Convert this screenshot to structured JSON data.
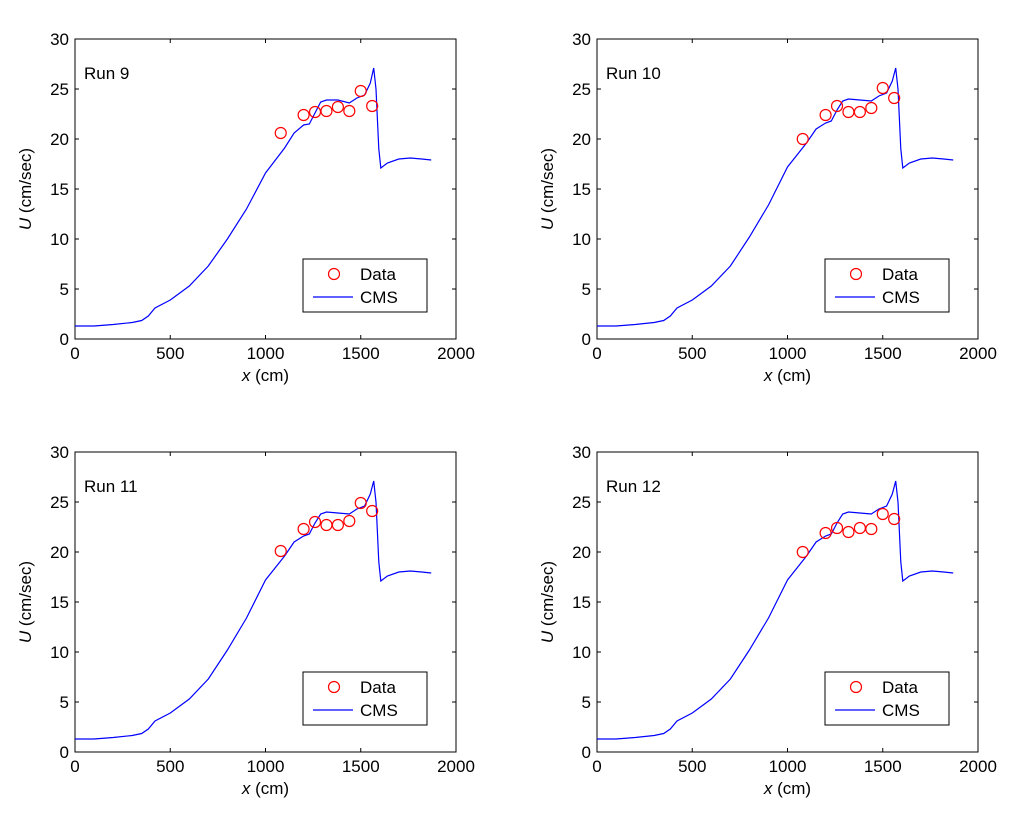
{
  "chart_data": [
    {
      "type": "line",
      "title": "Run 9",
      "xlabel_var": "x",
      "xlabel_unit": "(cm)",
      "ylabel_var": "U",
      "ylabel_unit": "(cm/sec)",
      "xlim": [
        0,
        2000
      ],
      "ylim": [
        0,
        30
      ],
      "xticks": [
        0,
        500,
        1000,
        1500,
        2000
      ],
      "yticks": [
        0,
        5,
        10,
        15,
        20,
        25,
        30
      ],
      "legend": "bottom-right",
      "series": [
        {
          "name": "Data",
          "kind": "scatter",
          "color": "#ff0000",
          "points": [
            [
              1080,
              20.6
            ],
            [
              1200,
              22.4
            ],
            [
              1260,
              22.7
            ],
            [
              1320,
              22.8
            ],
            [
              1380,
              23.2
            ],
            [
              1440,
              22.8
            ],
            [
              1500,
              24.8
            ],
            [
              1560,
              23.3
            ]
          ]
        },
        {
          "name": "CMS",
          "kind": "line",
          "color": "#0000ff",
          "points": [
            [
              0,
              1.3
            ],
            [
              100,
              1.3
            ],
            [
              200,
              1.45
            ],
            [
              300,
              1.65
            ],
            [
              350,
              1.85
            ],
            [
              385,
              2.3
            ],
            [
              420,
              3.1
            ],
            [
              500,
              3.9
            ],
            [
              600,
              5.3
            ],
            [
              700,
              7.3
            ],
            [
              800,
              10.0
            ],
            [
              900,
              13.0
            ],
            [
              1000,
              16.6
            ],
            [
              1100,
              19.1
            ],
            [
              1150,
              20.6
            ],
            [
              1200,
              21.4
            ],
            [
              1230,
              21.5
            ],
            [
              1260,
              22.6
            ],
            [
              1290,
              23.7
            ],
            [
              1320,
              23.9
            ],
            [
              1380,
              23.9
            ],
            [
              1440,
              23.6
            ],
            [
              1480,
              24.1
            ],
            [
              1520,
              24.4
            ],
            [
              1550,
              25.6
            ],
            [
              1568,
              27.1
            ],
            [
              1580,
              25.0
            ],
            [
              1595,
              19.0
            ],
            [
              1605,
              17.1
            ],
            [
              1640,
              17.6
            ],
            [
              1700,
              18.0
            ],
            [
              1760,
              18.1
            ],
            [
              1820,
              18.0
            ],
            [
              1870,
              17.9
            ]
          ]
        }
      ]
    },
    {
      "type": "line",
      "title": "Run 10",
      "xlabel_var": "x",
      "xlabel_unit": "(cm)",
      "ylabel_var": "U",
      "ylabel_unit": "(cm/sec)",
      "xlim": [
        0,
        2000
      ],
      "ylim": [
        0,
        30
      ],
      "xticks": [
        0,
        500,
        1000,
        1500,
        2000
      ],
      "yticks": [
        0,
        5,
        10,
        15,
        20,
        25,
        30
      ],
      "legend": "bottom-right",
      "series": [
        {
          "name": "Data",
          "kind": "scatter",
          "color": "#ff0000",
          "points": [
            [
              1080,
              20.0
            ],
            [
              1200,
              22.4
            ],
            [
              1260,
              23.3
            ],
            [
              1320,
              22.7
            ],
            [
              1380,
              22.7
            ],
            [
              1440,
              23.1
            ],
            [
              1500,
              25.1
            ],
            [
              1560,
              24.1
            ]
          ]
        },
        {
          "name": "CMS",
          "kind": "line",
          "color": "#0000ff",
          "points": [
            [
              0,
              1.3
            ],
            [
              100,
              1.3
            ],
            [
              200,
              1.45
            ],
            [
              300,
              1.65
            ],
            [
              350,
              1.85
            ],
            [
              385,
              2.3
            ],
            [
              420,
              3.1
            ],
            [
              500,
              3.9
            ],
            [
              600,
              5.3
            ],
            [
              700,
              7.3
            ],
            [
              800,
              10.2
            ],
            [
              900,
              13.4
            ],
            [
              1000,
              17.2
            ],
            [
              1100,
              19.6
            ],
            [
              1150,
              21.0
            ],
            [
              1200,
              21.6
            ],
            [
              1230,
              21.8
            ],
            [
              1260,
              22.9
            ],
            [
              1290,
              23.8
            ],
            [
              1320,
              24.0
            ],
            [
              1380,
              23.9
            ],
            [
              1440,
              23.8
            ],
            [
              1480,
              24.3
            ],
            [
              1520,
              24.6
            ],
            [
              1550,
              25.8
            ],
            [
              1568,
              27.1
            ],
            [
              1580,
              25.0
            ],
            [
              1595,
              19.0
            ],
            [
              1605,
              17.1
            ],
            [
              1640,
              17.6
            ],
            [
              1700,
              18.0
            ],
            [
              1760,
              18.1
            ],
            [
              1820,
              18.0
            ],
            [
              1870,
              17.9
            ]
          ]
        }
      ]
    },
    {
      "type": "line",
      "title": "Run 11",
      "xlabel_var": "x",
      "xlabel_unit": "(cm)",
      "ylabel_var": "U",
      "ylabel_unit": "(cm/sec)",
      "xlim": [
        0,
        2000
      ],
      "ylim": [
        0,
        30
      ],
      "xticks": [
        0,
        500,
        1000,
        1500,
        2000
      ],
      "yticks": [
        0,
        5,
        10,
        15,
        20,
        25,
        30
      ],
      "legend": "bottom-right",
      "series": [
        {
          "name": "Data",
          "kind": "scatter",
          "color": "#ff0000",
          "points": [
            [
              1080,
              20.1
            ],
            [
              1200,
              22.3
            ],
            [
              1260,
              23.0
            ],
            [
              1320,
              22.7
            ],
            [
              1380,
              22.7
            ],
            [
              1440,
              23.1
            ],
            [
              1500,
              24.9
            ],
            [
              1560,
              24.1
            ]
          ]
        },
        {
          "name": "CMS",
          "kind": "line",
          "color": "#0000ff",
          "points": [
            [
              0,
              1.3
            ],
            [
              100,
              1.3
            ],
            [
              200,
              1.45
            ],
            [
              300,
              1.65
            ],
            [
              350,
              1.85
            ],
            [
              385,
              2.3
            ],
            [
              420,
              3.1
            ],
            [
              500,
              3.9
            ],
            [
              600,
              5.3
            ],
            [
              700,
              7.3
            ],
            [
              800,
              10.2
            ],
            [
              900,
              13.4
            ],
            [
              1000,
              17.2
            ],
            [
              1100,
              19.6
            ],
            [
              1150,
              21.0
            ],
            [
              1200,
              21.6
            ],
            [
              1230,
              21.8
            ],
            [
              1260,
              22.9
            ],
            [
              1290,
              23.8
            ],
            [
              1320,
              24.0
            ],
            [
              1380,
              23.9
            ],
            [
              1440,
              23.8
            ],
            [
              1480,
              24.3
            ],
            [
              1520,
              24.6
            ],
            [
              1550,
              25.8
            ],
            [
              1568,
              27.1
            ],
            [
              1580,
              25.0
            ],
            [
              1595,
              19.0
            ],
            [
              1605,
              17.1
            ],
            [
              1640,
              17.6
            ],
            [
              1700,
              18.0
            ],
            [
              1760,
              18.1
            ],
            [
              1820,
              18.0
            ],
            [
              1870,
              17.9
            ]
          ]
        }
      ]
    },
    {
      "type": "line",
      "title": "Run 12",
      "xlabel_var": "x",
      "xlabel_unit": "(cm)",
      "ylabel_var": "U",
      "ylabel_unit": "(cm/sec)",
      "xlim": [
        0,
        2000
      ],
      "ylim": [
        0,
        30
      ],
      "xticks": [
        0,
        500,
        1000,
        1500,
        2000
      ],
      "yticks": [
        0,
        5,
        10,
        15,
        20,
        25,
        30
      ],
      "legend": "bottom-right",
      "series": [
        {
          "name": "Data",
          "kind": "scatter",
          "color": "#ff0000",
          "points": [
            [
              1080,
              20.0
            ],
            [
              1200,
              21.9
            ],
            [
              1260,
              22.4
            ],
            [
              1320,
              22.0
            ],
            [
              1380,
              22.4
            ],
            [
              1440,
              22.3
            ],
            [
              1500,
              23.8
            ],
            [
              1560,
              23.3
            ]
          ]
        },
        {
          "name": "CMS",
          "kind": "line",
          "color": "#0000ff",
          "points": [
            [
              0,
              1.3
            ],
            [
              100,
              1.3
            ],
            [
              200,
              1.45
            ],
            [
              300,
              1.65
            ],
            [
              350,
              1.85
            ],
            [
              385,
              2.3
            ],
            [
              420,
              3.1
            ],
            [
              500,
              3.9
            ],
            [
              600,
              5.3
            ],
            [
              700,
              7.3
            ],
            [
              800,
              10.2
            ],
            [
              900,
              13.4
            ],
            [
              1000,
              17.2
            ],
            [
              1100,
              19.6
            ],
            [
              1150,
              21.0
            ],
            [
              1200,
              21.6
            ],
            [
              1230,
              21.8
            ],
            [
              1260,
              22.9
            ],
            [
              1290,
              23.8
            ],
            [
              1320,
              24.0
            ],
            [
              1380,
              23.9
            ],
            [
              1440,
              23.8
            ],
            [
              1480,
              24.3
            ],
            [
              1520,
              24.6
            ],
            [
              1550,
              25.8
            ],
            [
              1568,
              27.1
            ],
            [
              1580,
              25.0
            ],
            [
              1595,
              19.0
            ],
            [
              1605,
              17.1
            ],
            [
              1640,
              17.6
            ],
            [
              1700,
              18.0
            ],
            [
              1760,
              18.1
            ],
            [
              1820,
              18.0
            ],
            [
              1870,
              17.9
            ]
          ]
        }
      ]
    }
  ]
}
